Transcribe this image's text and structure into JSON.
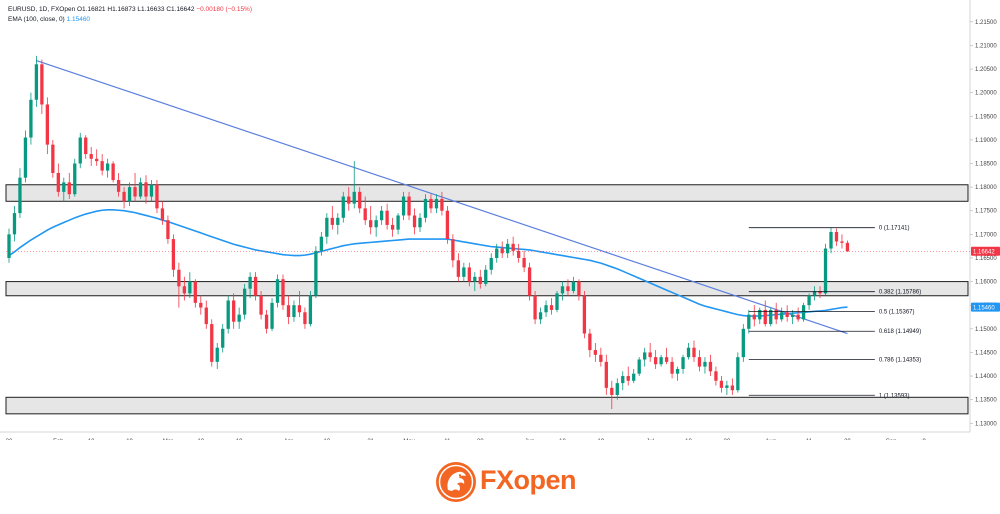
{
  "legend": {
    "symbol_line": "EURUSD, 1D, FXOpen",
    "ohlc": {
      "o": "O1.16821",
      "h": "H1.16873",
      "l": "L1.16633",
      "c": "C1.16642",
      "chg": "−0.00180 (−0.15%)"
    },
    "ema_label": "EMA (100, close, 0)",
    "ema_value": "1.15460"
  },
  "logo": {
    "text": "FXopen",
    "text_part1": "FX",
    "text_part2": "open",
    "color": "#f26522"
  },
  "colors": {
    "up": "#089981",
    "down": "#f23645",
    "ema": "#2196f3",
    "trendline": "#5b7fde",
    "zone_fill": "#e6e6e6",
    "zone_border": "#1f1f1f"
  },
  "chart_data": {
    "type": "candlestick",
    "symbol": "EURUSD",
    "timeframe": "1D",
    "y_ticks": [
      1.215,
      1.21,
      1.205,
      1.2,
      1.195,
      1.19,
      1.185,
      1.18,
      1.175,
      1.17,
      1.165,
      1.16,
      1.155,
      1.15,
      1.145,
      1.14,
      1.135,
      1.13
    ],
    "y_tick_labels": [
      "1.21500",
      "1.21000",
      "1.20500",
      "1.20000",
      "1.19500",
      "1.19000",
      "1.18500",
      "1.18000",
      "1.17500",
      "1.17000",
      "1.16500",
      "1.16000",
      "1.15500",
      "1.15000",
      "1.14500",
      "1.14000",
      "1.13500",
      "1.13000"
    ],
    "ylim": [
      1.129,
      1.2175
    ],
    "x_ticks": [
      {
        "label": "20",
        "bar": 0
      },
      {
        "label": "Feb",
        "bar": 9
      },
      {
        "label": "10",
        "bar": 15
      },
      {
        "label": "19",
        "bar": 22
      },
      {
        "label": "Mar",
        "bar": 29
      },
      {
        "label": "10",
        "bar": 35
      },
      {
        "label": "19",
        "bar": 42
      },
      {
        "label": "Apr",
        "bar": 51
      },
      {
        "label": "10",
        "bar": 58
      },
      {
        "label": "21",
        "bar": 66
      },
      {
        "label": "May",
        "bar": 73
      },
      {
        "label": "11",
        "bar": 80
      },
      {
        "label": "20",
        "bar": 86
      },
      {
        "label": "Jun",
        "bar": 95
      },
      {
        "label": "10",
        "bar": 101
      },
      {
        "label": "19",
        "bar": 108
      },
      {
        "label": "Jul",
        "bar": 117
      },
      {
        "label": "10",
        "bar": 124
      },
      {
        "label": "20",
        "bar": 131
      },
      {
        "label": "Aug",
        "bar": 139
      },
      {
        "label": "11",
        "bar": 146
      },
      {
        "label": "20",
        "bar": 153
      },
      {
        "label": "Sep",
        "bar": 161
      },
      {
        "label": "9",
        "bar": 167
      }
    ],
    "last_price": 1.16642,
    "last_price_label": "1.16642",
    "ema_last_label": "1.15460",
    "zones": [
      {
        "top": 1.1805,
        "bottom": 1.177
      },
      {
        "top": 1.16,
        "bottom": 1.157
      },
      {
        "top": 1.1355,
        "bottom": 1.132
      }
    ],
    "trendline": [
      {
        "bar": 5,
        "price": 1.2068
      },
      {
        "bar": 153,
        "price": 1.149
      }
    ],
    "fib_levels": [
      {
        "label": "0 (1.17141)",
        "price": 1.17141
      },
      {
        "label": "0.382 (1.15786)",
        "price": 1.15786
      },
      {
        "label": "0.5 (1.15367)",
        "price": 1.15367
      },
      {
        "label": "0.618 (1.14949)",
        "price": 1.14949
      },
      {
        "label": "0.786 (1.14353)",
        "price": 1.14353
      },
      {
        "label": "1 (1.13593)",
        "price": 1.13593
      }
    ],
    "fib_x_start_bar": 135,
    "fib_x_end_bar": 158,
    "ema_series": [
      1.1655,
      1.1663,
      1.1672,
      1.168,
      1.1688,
      1.1695,
      1.1702,
      1.1709,
      1.1715,
      1.172,
      1.1725,
      1.173,
      1.1735,
      1.1739,
      1.1743,
      1.1746,
      1.1749,
      1.1751,
      1.1752,
      1.1752,
      1.1751,
      1.175,
      1.1748,
      1.1746,
      1.1743,
      1.174,
      1.1737,
      1.1734,
      1.173,
      1.1727,
      1.1723,
      1.1719,
      1.1715,
      1.1711,
      1.1707,
      1.1703,
      1.1699,
      1.1695,
      1.1691,
      1.1687,
      1.1683,
      1.1679,
      1.1676,
      1.1673,
      1.167,
      1.1667,
      1.1665,
      1.1663,
      1.1661,
      1.1659,
      1.1657,
      1.1656,
      1.1655,
      1.1655,
      1.1656,
      1.1658,
      1.1661,
      1.1664,
      1.1667,
      1.167,
      1.1673,
      1.1676,
      1.1678,
      1.168,
      1.1681,
      1.1682,
      1.1683,
      1.1684,
      1.1685,
      1.1686,
      1.1687,
      1.1688,
      1.1689,
      1.169,
      1.169,
      1.169,
      1.169,
      1.169,
      1.169,
      1.169,
      1.169,
      1.1688,
      1.1686,
      1.1684,
      1.1682,
      1.168,
      1.1678,
      1.1676,
      1.1674,
      1.1673,
      1.1672,
      1.1671,
      1.167,
      1.1669,
      1.1668,
      1.1667,
      1.1665,
      1.1663,
      1.1661,
      1.1659,
      1.1657,
      1.1655,
      1.1653,
      1.1651,
      1.1649,
      1.1647,
      1.1645,
      1.1642,
      1.1639,
      1.1635,
      1.1631,
      1.1627,
      1.1622,
      1.1617,
      1.1612,
      1.1607,
      1.1602,
      1.1597,
      1.1592,
      1.1587,
      1.1582,
      1.1577,
      1.1572,
      1.1567,
      1.1562,
      1.1557,
      1.1552,
      1.1548,
      1.1545,
      1.1542,
      1.1539,
      1.1536,
      1.1533,
      1.153,
      1.1528,
      1.1527,
      1.1527,
      1.1527,
      1.1528,
      1.1529,
      1.153,
      1.1531,
      1.1532,
      1.1533,
      1.1534,
      1.1535,
      1.1536,
      1.1537,
      1.1538,
      1.1539,
      1.1541,
      1.1543,
      1.1545,
      1.1546
    ],
    "ohlc_series": [
      [
        1.165,
        1.1712,
        1.164,
        1.17
      ],
      [
        1.17,
        1.176,
        1.1685,
        1.1745
      ],
      [
        1.1745,
        1.184,
        1.1735,
        1.182
      ],
      [
        1.182,
        1.192,
        1.181,
        1.1905
      ],
      [
        1.1905,
        1.2,
        1.189,
        1.1985
      ],
      [
        1.1985,
        1.2078,
        1.197,
        1.206
      ],
      [
        1.206,
        1.207,
        1.1955,
        1.1975
      ],
      [
        1.1975,
        1.199,
        1.187,
        1.189
      ],
      [
        1.189,
        1.19,
        1.182,
        1.183
      ],
      [
        1.183,
        1.185,
        1.178,
        1.179
      ],
      [
        1.179,
        1.182,
        1.177,
        1.181
      ],
      [
        1.181,
        1.183,
        1.1775,
        1.1785
      ],
      [
        1.1785,
        1.186,
        1.178,
        1.185
      ],
      [
        1.185,
        1.1915,
        1.184,
        1.1905
      ],
      [
        1.1905,
        1.191,
        1.186,
        1.187
      ],
      [
        1.187,
        1.1885,
        1.1845,
        1.186
      ],
      [
        1.186,
        1.188,
        1.1845,
        1.1855
      ],
      [
        1.1855,
        1.187,
        1.1825,
        1.1835
      ],
      [
        1.1835,
        1.186,
        1.182,
        1.185
      ],
      [
        1.185,
        1.1855,
        1.181,
        1.1815
      ],
      [
        1.1815,
        1.183,
        1.178,
        1.179
      ],
      [
        1.179,
        1.18,
        1.1755,
        1.177
      ],
      [
        1.177,
        1.181,
        1.176,
        1.18
      ],
      [
        1.18,
        1.183,
        1.177,
        1.178
      ],
      [
        1.178,
        1.182,
        1.1775,
        1.181
      ],
      [
        1.181,
        1.1825,
        1.1765,
        1.178
      ],
      [
        1.178,
        1.1815,
        1.177,
        1.1805
      ],
      [
        1.1805,
        1.1815,
        1.1745,
        1.1755
      ],
      [
        1.1755,
        1.177,
        1.172,
        1.173
      ],
      [
        1.173,
        1.174,
        1.168,
        1.169
      ],
      [
        1.169,
        1.17,
        1.161,
        1.1625
      ],
      [
        1.1625,
        1.164,
        1.1545,
        1.159
      ],
      [
        1.159,
        1.161,
        1.156,
        1.1575
      ],
      [
        1.1575,
        1.162,
        1.1565,
        1.16
      ],
      [
        1.16,
        1.1605,
        1.1545,
        1.1555
      ],
      [
        1.1555,
        1.157,
        1.153,
        1.1545
      ],
      [
        1.1545,
        1.156,
        1.15,
        1.151
      ],
      [
        1.151,
        1.152,
        1.142,
        1.143
      ],
      [
        1.143,
        1.147,
        1.1415,
        1.146
      ],
      [
        1.146,
        1.151,
        1.145,
        1.15
      ],
      [
        1.15,
        1.157,
        1.149,
        1.156
      ],
      [
        1.156,
        1.1575,
        1.15,
        1.1515
      ],
      [
        1.1515,
        1.1545,
        1.15,
        1.153
      ],
      [
        1.153,
        1.1595,
        1.152,
        1.1585
      ],
      [
        1.1585,
        1.162,
        1.1565,
        1.161
      ],
      [
        1.161,
        1.162,
        1.156,
        1.157
      ],
      [
        1.157,
        1.158,
        1.152,
        1.153
      ],
      [
        1.153,
        1.154,
        1.149,
        1.15
      ],
      [
        1.15,
        1.1565,
        1.1495,
        1.1555
      ],
      [
        1.1555,
        1.1615,
        1.1545,
        1.1605
      ],
      [
        1.1605,
        1.1615,
        1.154,
        1.155
      ],
      [
        1.155,
        1.157,
        1.151,
        1.1525
      ],
      [
        1.1525,
        1.156,
        1.1515,
        1.155
      ],
      [
        1.155,
        1.158,
        1.1525,
        1.1535
      ],
      [
        1.1535,
        1.1545,
        1.15,
        1.151
      ],
      [
        1.151,
        1.158,
        1.1505,
        1.157
      ],
      [
        1.157,
        1.1675,
        1.1565,
        1.1665
      ],
      [
        1.1665,
        1.1705,
        1.1655,
        1.1695
      ],
      [
        1.1695,
        1.1745,
        1.168,
        1.1735
      ],
      [
        1.1735,
        1.176,
        1.171,
        1.172
      ],
      [
        1.172,
        1.1745,
        1.17,
        1.1735
      ],
      [
        1.1735,
        1.179,
        1.1725,
        1.178
      ],
      [
        1.178,
        1.18,
        1.175,
        1.1765
      ],
      [
        1.1765,
        1.1855,
        1.1755,
        1.179
      ],
      [
        1.179,
        1.18,
        1.1745,
        1.1755
      ],
      [
        1.1755,
        1.178,
        1.172,
        1.173
      ],
      [
        1.173,
        1.176,
        1.17,
        1.1715
      ],
      [
        1.1715,
        1.174,
        1.1695,
        1.173
      ],
      [
        1.173,
        1.176,
        1.172,
        1.175
      ],
      [
        1.175,
        1.1765,
        1.171,
        1.172
      ],
      [
        1.172,
        1.1735,
        1.1695,
        1.171
      ],
      [
        1.171,
        1.1745,
        1.17,
        1.174
      ],
      [
        1.174,
        1.179,
        1.173,
        1.178
      ],
      [
        1.178,
        1.179,
        1.173,
        1.174
      ],
      [
        1.174,
        1.1755,
        1.17,
        1.1715
      ],
      [
        1.1715,
        1.1745,
        1.1705,
        1.1735
      ],
      [
        1.1735,
        1.1785,
        1.1725,
        1.1775
      ],
      [
        1.1775,
        1.1785,
        1.1745,
        1.1755
      ],
      [
        1.1755,
        1.1785,
        1.1745,
        1.1775
      ],
      [
        1.1775,
        1.179,
        1.174,
        1.175
      ],
      [
        1.175,
        1.176,
        1.168,
        1.169
      ],
      [
        1.169,
        1.17,
        1.163,
        1.1645
      ],
      [
        1.1645,
        1.166,
        1.16,
        1.161
      ],
      [
        1.161,
        1.164,
        1.16,
        1.163
      ],
      [
        1.163,
        1.164,
        1.159,
        1.16
      ],
      [
        1.16,
        1.162,
        1.158,
        1.161
      ],
      [
        1.161,
        1.1625,
        1.1585,
        1.1595
      ],
      [
        1.1595,
        1.1635,
        1.159,
        1.1625
      ],
      [
        1.1625,
        1.166,
        1.1615,
        1.165
      ],
      [
        1.165,
        1.168,
        1.164,
        1.167
      ],
      [
        1.167,
        1.1685,
        1.165,
        1.166
      ],
      [
        1.166,
        1.169,
        1.165,
        1.168
      ],
      [
        1.168,
        1.1695,
        1.1655,
        1.1665
      ],
      [
        1.1665,
        1.168,
        1.164,
        1.165
      ],
      [
        1.165,
        1.1665,
        1.162,
        1.163
      ],
      [
        1.163,
        1.164,
        1.156,
        1.157
      ],
      [
        1.157,
        1.158,
        1.151,
        1.152
      ],
      [
        1.152,
        1.1545,
        1.151,
        1.1535
      ],
      [
        1.1535,
        1.156,
        1.1525,
        1.155
      ],
      [
        1.155,
        1.1565,
        1.153,
        1.154
      ],
      [
        1.154,
        1.158,
        1.1535,
        1.1575
      ],
      [
        1.1575,
        1.16,
        1.156,
        1.159
      ],
      [
        1.159,
        1.1605,
        1.157,
        1.158
      ],
      [
        1.158,
        1.161,
        1.1575,
        1.16
      ],
      [
        1.16,
        1.1605,
        1.156,
        1.157
      ],
      [
        1.157,
        1.158,
        1.148,
        1.149
      ],
      [
        1.149,
        1.15,
        1.144,
        1.1455
      ],
      [
        1.1455,
        1.147,
        1.143,
        1.1445
      ],
      [
        1.1445,
        1.146,
        1.142,
        1.143
      ],
      [
        1.143,
        1.1445,
        1.136,
        1.1375
      ],
      [
        1.1375,
        1.139,
        1.133,
        1.136
      ],
      [
        1.136,
        1.1395,
        1.135,
        1.1385
      ],
      [
        1.1385,
        1.141,
        1.137,
        1.14
      ],
      [
        1.14,
        1.142,
        1.138,
        1.139
      ],
      [
        1.139,
        1.1415,
        1.1385,
        1.1405
      ],
      [
        1.1405,
        1.144,
        1.14,
        1.1435
      ],
      [
        1.1435,
        1.146,
        1.142,
        1.145
      ],
      [
        1.145,
        1.147,
        1.143,
        1.144
      ],
      [
        1.144,
        1.1455,
        1.1415,
        1.1425
      ],
      [
        1.1425,
        1.1445,
        1.142,
        1.144
      ],
      [
        1.144,
        1.146,
        1.1425,
        1.143
      ],
      [
        1.143,
        1.144,
        1.1395,
        1.1405
      ],
      [
        1.1405,
        1.142,
        1.139,
        1.1415
      ],
      [
        1.1415,
        1.1445,
        1.1405,
        1.144
      ],
      [
        1.144,
        1.147,
        1.1435,
        1.146
      ],
      [
        1.146,
        1.1475,
        1.143,
        1.144
      ],
      [
        1.144,
        1.1455,
        1.141,
        1.142
      ],
      [
        1.142,
        1.144,
        1.1405,
        1.143
      ],
      [
        1.143,
        1.1445,
        1.14,
        1.141
      ],
      [
        1.141,
        1.142,
        1.138,
        1.139
      ],
      [
        1.139,
        1.14,
        1.1365,
        1.1375
      ],
      [
        1.1375,
        1.139,
        1.136,
        1.138
      ],
      [
        1.138,
        1.1395,
        1.136,
        1.137
      ],
      [
        1.137,
        1.145,
        1.1365,
        1.144
      ],
      [
        1.144,
        1.151,
        1.143,
        1.15
      ],
      [
        1.15,
        1.154,
        1.149,
        1.153
      ],
      [
        1.153,
        1.155,
        1.1505,
        1.152
      ],
      [
        1.152,
        1.1545,
        1.151,
        1.154
      ],
      [
        1.154,
        1.156,
        1.1505,
        1.151
      ],
      [
        1.151,
        1.1545,
        1.1505,
        1.154
      ],
      [
        1.154,
        1.1555,
        1.151,
        1.152
      ],
      [
        1.152,
        1.1545,
        1.1515,
        1.1535
      ],
      [
        1.1535,
        1.155,
        1.1515,
        1.1525
      ],
      [
        1.1525,
        1.154,
        1.151,
        1.153
      ],
      [
        1.153,
        1.1545,
        1.1515,
        1.152
      ],
      [
        1.152,
        1.1555,
        1.1515,
        1.155
      ],
      [
        1.155,
        1.1575,
        1.154,
        1.157
      ],
      [
        1.157,
        1.159,
        1.156,
        1.158
      ],
      [
        1.158,
        1.159,
        1.1565,
        1.1575
      ],
      [
        1.1575,
        1.168,
        1.157,
        1.167
      ],
      [
        1.167,
        1.1714,
        1.166,
        1.1705
      ],
      [
        1.1705,
        1.1712,
        1.1675,
        1.1685
      ],
      [
        1.1685,
        1.17,
        1.167,
        1.1682
      ],
      [
        1.1682,
        1.1687,
        1.1663,
        1.1664
      ]
    ]
  }
}
